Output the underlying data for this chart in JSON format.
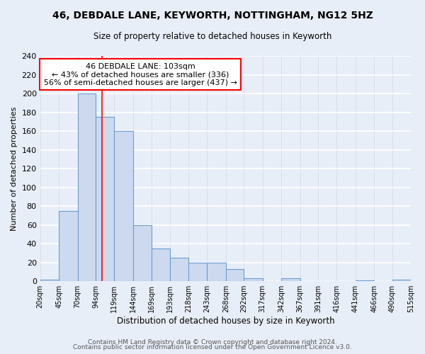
{
  "title": "46, DEBDALE LANE, KEYWORTH, NOTTINGHAM, NG12 5HZ",
  "subtitle": "Size of property relative to detached houses in Keyworth",
  "xlabel": "Distribution of detached houses by size in Keyworth",
  "ylabel": "Number of detached properties",
  "bar_color": "#ccd9ef",
  "bar_edge_color": "#6a9fd0",
  "bins": [
    20,
    45,
    70,
    94,
    119,
    144,
    169,
    193,
    218,
    243,
    268,
    292,
    317,
    342,
    367,
    391,
    416,
    441,
    466,
    490,
    515
  ],
  "counts": [
    2,
    75,
    200,
    175,
    160,
    60,
    35,
    25,
    20,
    20,
    13,
    3,
    0,
    3,
    0,
    0,
    0,
    1,
    0,
    2
  ],
  "tick_labels": [
    "20sqm",
    "45sqm",
    "70sqm",
    "94sqm",
    "119sqm",
    "144sqm",
    "169sqm",
    "193sqm",
    "218sqm",
    "243sqm",
    "268sqm",
    "292sqm",
    "317sqm",
    "342sqm",
    "367sqm",
    "391sqm",
    "416sqm",
    "441sqm",
    "466sqm",
    "490sqm",
    "515sqm"
  ],
  "red_line_x": 103,
  "annotation_title": "46 DEBDALE LANE: 103sqm",
  "annotation_line1": "← 43% of detached houses are smaller (336)",
  "annotation_line2": "56% of semi-detached houses are larger (437) →",
  "ylim": [
    0,
    240
  ],
  "yticks": [
    0,
    20,
    40,
    60,
    80,
    100,
    120,
    140,
    160,
    180,
    200,
    220,
    240
  ],
  "footer1": "Contains HM Land Registry data © Crown copyright and database right 2024.",
  "footer2": "Contains public sector information licensed under the Open Government Licence v3.0.",
  "background_color": "#e8eef8",
  "plot_bg_color": "#e8eef8",
  "grid_color": "#d0d8e8"
}
